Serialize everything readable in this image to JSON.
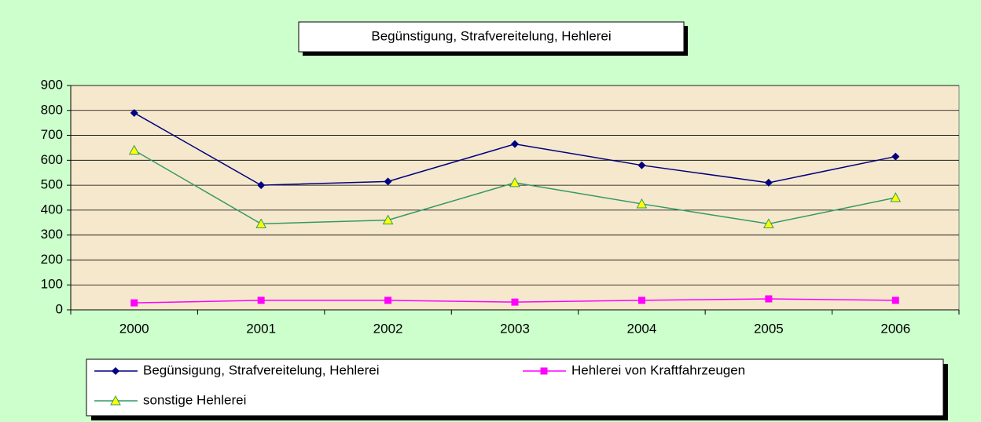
{
  "chart_data": {
    "type": "line",
    "title": "Begünstigung, Strafvereitelung, Hehlerei",
    "categories": [
      "2000",
      "2001",
      "2002",
      "2003",
      "2004",
      "2005",
      "2006"
    ],
    "series": [
      {
        "name": "Begünsigung, Strafvereitelung, Hehlerei",
        "color": "#000080",
        "marker": "diamond",
        "values": [
          790,
          500,
          515,
          665,
          580,
          510,
          615
        ]
      },
      {
        "name": "Hehlerei von Kraftfahrzeugen",
        "color": "#ff00ff",
        "marker": "square",
        "values": [
          28,
          38,
          38,
          31,
          38,
          44,
          38
        ]
      },
      {
        "name": "sonstige Hehlerei",
        "color": "#339966",
        "marker": "triangle",
        "values": [
          640,
          345,
          360,
          510,
          425,
          345,
          450
        ]
      }
    ],
    "ylim": [
      0,
      900
    ],
    "yticks": [
      0,
      100,
      200,
      300,
      400,
      500,
      600,
      700,
      800,
      900
    ],
    "grid": true
  }
}
